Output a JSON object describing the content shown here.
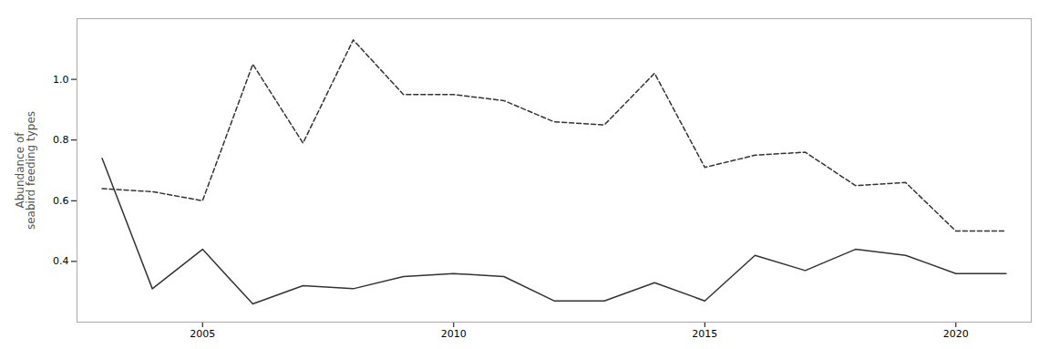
{
  "chart_data": {
    "type": "line",
    "ylabel": "Abundance of\nseabird feeding types",
    "x": [
      2003,
      2004,
      2005,
      2006,
      2007,
      2008,
      2009,
      2010,
      2011,
      2012,
      2013,
      2014,
      2015,
      2016,
      2017,
      2018,
      2019,
      2020,
      2021
    ],
    "series": [
      {
        "color": "#333333",
        "line_style": "solid",
        "values": [
          0.74,
          0.31,
          0.44,
          0.26,
          0.32,
          0.31,
          0.35,
          0.36,
          0.35,
          0.27,
          0.27,
          0.33,
          0.27,
          0.42,
          0.37,
          0.44,
          0.42,
          0.36,
          0.36
        ]
      },
      {
        "color": "#333333",
        "line_style": "dashed",
        "values": [
          0.64,
          0.63,
          0.6,
          1.05,
          0.79,
          1.13,
          0.95,
          0.95,
          0.93,
          0.86,
          0.85,
          1.02,
          0.71,
          0.75,
          0.76,
          0.65,
          0.66,
          0.5,
          0.5
        ]
      }
    ],
    "xlim": [
      2002.5,
      2021.5
    ],
    "ylim": [
      0.2,
      1.2
    ],
    "xticks": [
      2005,
      2010,
      2015,
      2020
    ],
    "yticks": [
      0.4,
      0.6,
      0.8,
      {
        "value": 1.0,
        "label": "1.0"
      }
    ],
    "grid": false
  }
}
